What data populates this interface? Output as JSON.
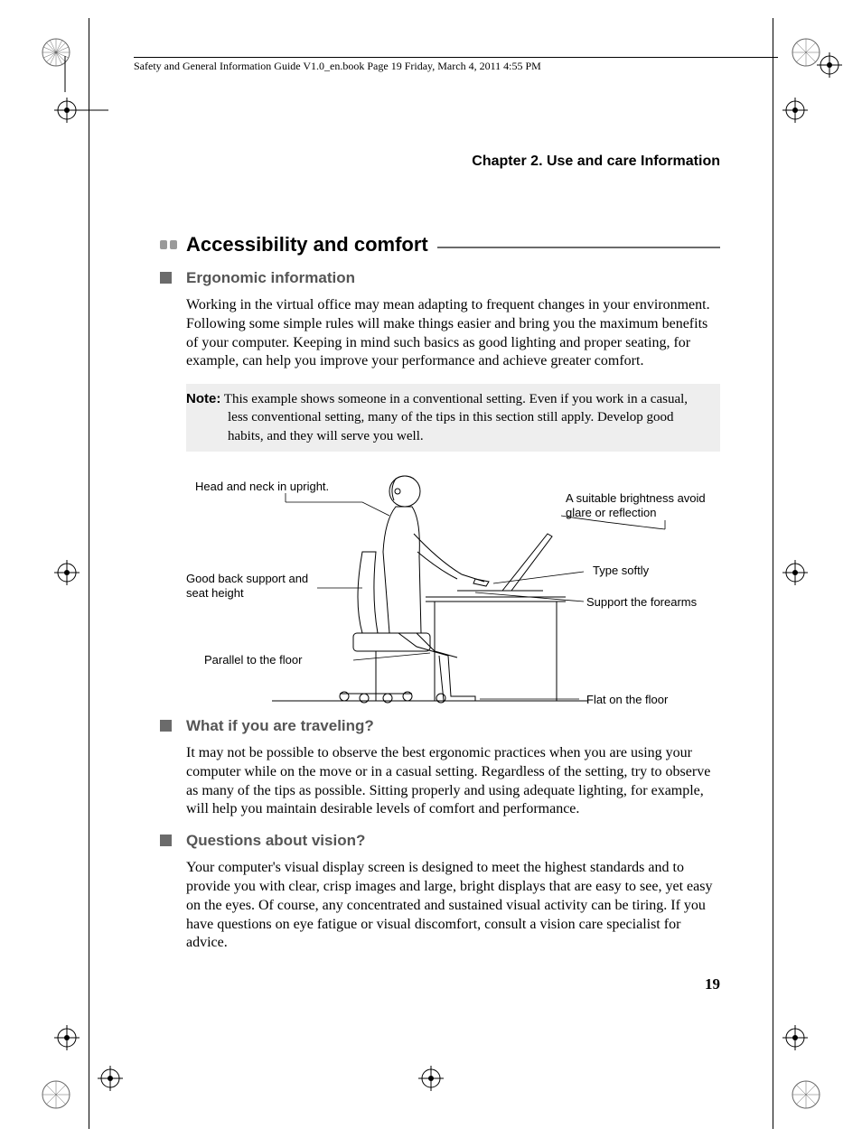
{
  "header": {
    "running": "Safety and General Information Guide V1.0_en.book  Page 19  Friday, March 4, 2011  4:55 PM"
  },
  "chapter": "Chapter 2. Use and care Information",
  "section": {
    "title": "Accessibility and comfort"
  },
  "sub1": {
    "title": "Ergonomic information",
    "body": "Working in the virtual office may mean adapting to frequent changes in your environment. Following some simple rules will make things easier and bring you the maximum benefits of your computer. Keeping in mind such basics as good lighting and proper seating, for example, can help you improve your performance and achieve greater comfort."
  },
  "note": {
    "label": "Note:",
    "text": " This example shows someone in a conventional setting. Even if you work in a casual, less conventional setting, many of the tips in this section still apply. Develop good habits, and they will serve you well."
  },
  "diagram": {
    "labels": {
      "head": "Head and neck in upright.",
      "brightness": "A suitable brightness avoid glare or reflection",
      "back": "Good back support and seat height",
      "type": "Type softly",
      "forearms": "Support the forearms",
      "parallel": "Parallel to the floor",
      "flat": "Flat on the floor"
    }
  },
  "sub2": {
    "title": "What if you are traveling?",
    "body": "It may not be possible to observe the best ergonomic practices when you are using your computer while on the move or in a casual setting. Regardless of the setting, try to observe as many of the tips as possible. Sitting properly and using adequate lighting, for example, will help you maintain desirable levels of comfort and performance."
  },
  "sub3": {
    "title": "Questions about vision?",
    "body": "Your computer's visual display screen is designed to meet the highest standards and to provide you with clear, crisp images and large, bright displays that are easy to see, yet easy on the eyes. Of course, any concentrated and sustained visual activity can be tiring. If you have questions on eye fatigue or visual discomfort, consult a vision care specialist for advice."
  },
  "page_number": "19",
  "colors": {
    "bullet_gray": "#9a9a9a",
    "sub_bullet": "#6b6b6b",
    "sub_title": "#555555",
    "note_bg": "#eeeeee"
  }
}
